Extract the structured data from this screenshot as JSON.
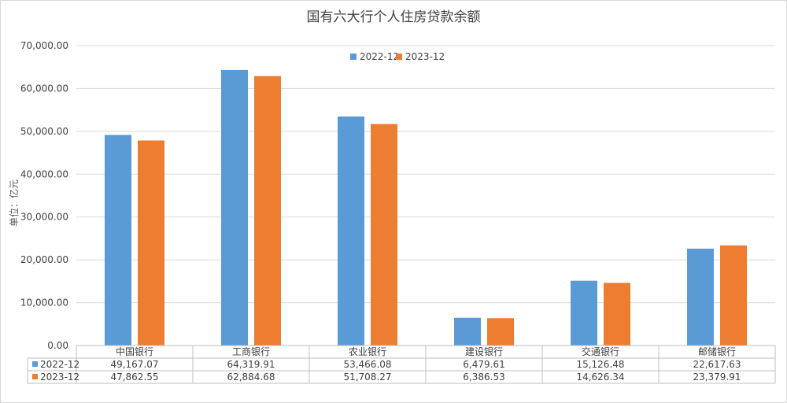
{
  "chart_data": {
    "type": "bar",
    "title": "国有六大行个人住房贷款余额",
    "ylabel": "单位：亿元",
    "xlabel": "",
    "ylim": [
      0,
      70000
    ],
    "yticks": [
      0,
      10000,
      20000,
      30000,
      40000,
      50000,
      60000,
      70000
    ],
    "ytick_labels": [
      "0.00",
      "10,000.00",
      "20,000.00",
      "30,000.00",
      "40,000.00",
      "50,000.00",
      "60,000.00",
      "70,000.00"
    ],
    "grid": true,
    "legend_position": "top-center",
    "categories": [
      "中国银行",
      "工商银行",
      "农业银行",
      "建设银行",
      "交通银行",
      "邮储银行"
    ],
    "series": [
      {
        "name": "2022-12",
        "color": "#5b9bd5",
        "values": [
          49167.07,
          64319.91,
          53466.08,
          6479.61,
          15126.48,
          22617.63
        ],
        "value_labels": [
          "49,167.07",
          "64,319.91",
          "53,466.08",
          "6,479.61",
          "15,126.48",
          "22,617.63"
        ]
      },
      {
        "name": "2023-12",
        "color": "#ed7d31",
        "values": [
          47862.55,
          62884.68,
          51708.27,
          6386.53,
          14626.34,
          23379.91
        ],
        "value_labels": [
          "47,862.55",
          "62,884.68",
          "51,708.27",
          "6,386.53",
          "14,626.34",
          "23,379.91"
        ]
      }
    ],
    "data_table": true
  }
}
